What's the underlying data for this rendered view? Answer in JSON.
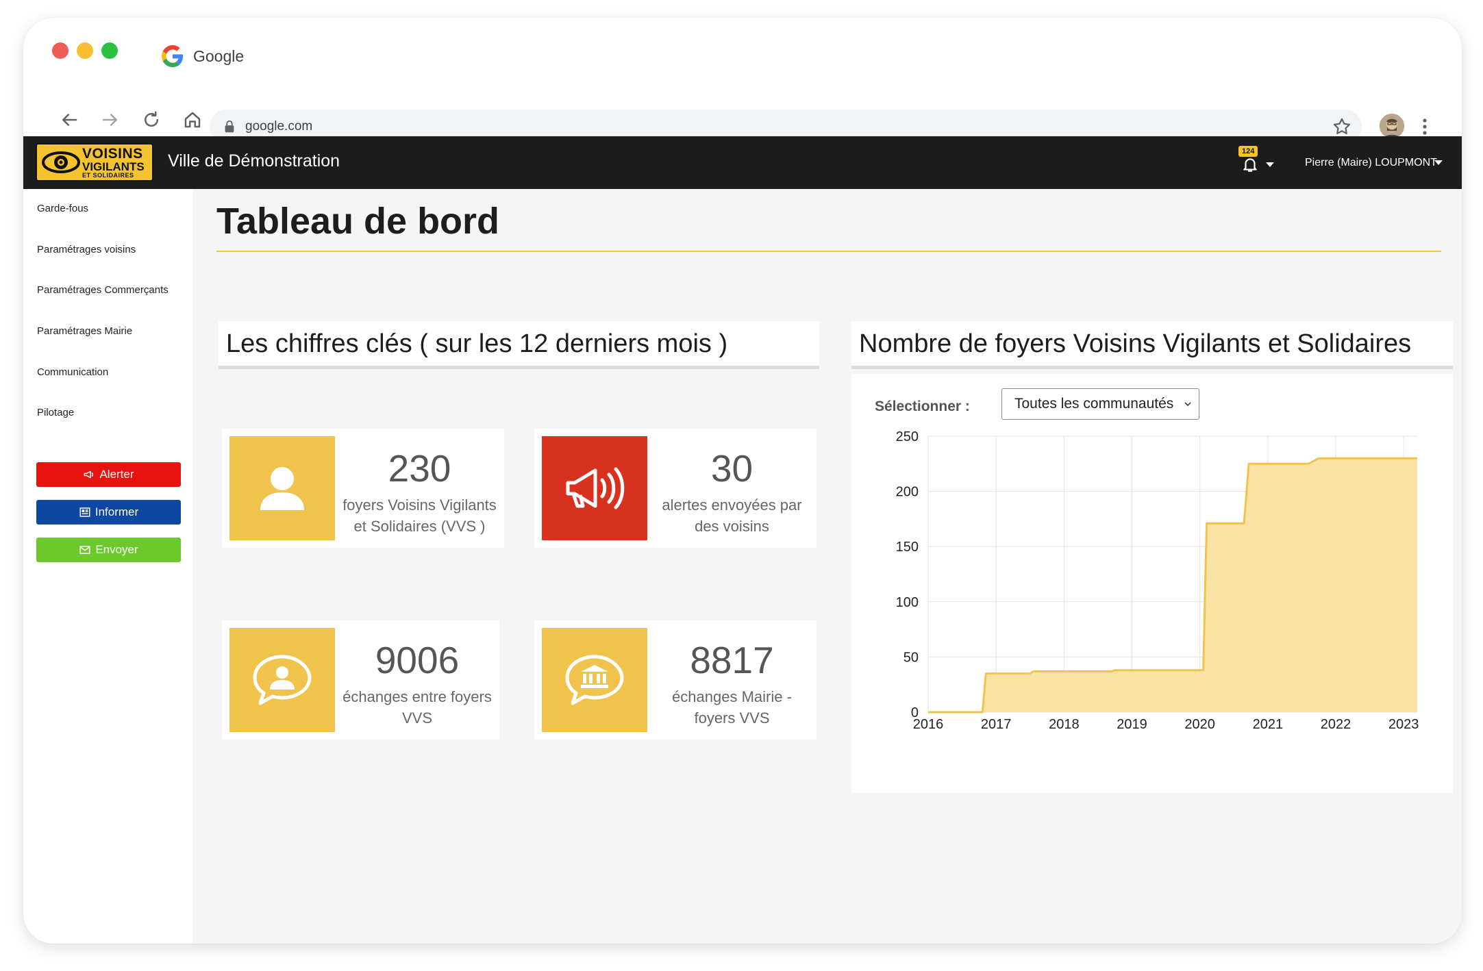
{
  "browser": {
    "tab_title": "Google",
    "url": "google.com"
  },
  "app": {
    "logo": {
      "line1": "VOISINS",
      "line2": "VIGILANTS",
      "line3": "ET SOLIDAIRES"
    },
    "city": "Ville de Démonstration",
    "notifications_count": "124",
    "user": "Pierre (Maire) LOUPMONT"
  },
  "sidebar": {
    "items": [
      {
        "label": "Garde-fous"
      },
      {
        "label": "Paramétrages voisins"
      },
      {
        "label": "Paramétrages Commerçants"
      },
      {
        "label": "Paramétrages Mairie"
      },
      {
        "label": "Communication"
      },
      {
        "label": "Pilotage"
      }
    ],
    "buttons": {
      "alert": "Alerter",
      "inform": "Informer",
      "send": "Envoyer"
    }
  },
  "main": {
    "title": "Tableau de bord",
    "key_figures": {
      "heading": "Les chiffres clés ( sur les 12 derniers mois )",
      "cards": [
        {
          "value": "230",
          "label": "foyers Voisins Vigilants et Solidaires (VVS )",
          "icon": "user-icon",
          "color": "#f0c44c"
        },
        {
          "value": "30",
          "label": "alertes envoyées par des voisins",
          "icon": "megaphone-icon",
          "color": "#d8321f"
        },
        {
          "value": "9006",
          "label": "échanges entre foyers VVS",
          "icon": "user-chat-icon",
          "color": "#f0c44c"
        },
        {
          "value": "8817",
          "label": "échanges Mairie - foyers VVS",
          "icon": "townhall-chat-icon",
          "color": "#f0c44c"
        }
      ]
    },
    "households_chart": {
      "heading": "Nombre de foyers Voisins Vigilants et Solidaires",
      "select_label": "Sélectionner :",
      "select_value": "Toutes les communautés"
    }
  },
  "chart_data": {
    "type": "area",
    "title": "",
    "xlabel": "",
    "ylabel": "",
    "x_ticks": [
      "2016",
      "2017",
      "2018",
      "2019",
      "2020",
      "2021",
      "2022",
      "2023"
    ],
    "y_ticks": [
      0,
      50,
      100,
      150,
      200,
      250
    ],
    "xlim": [
      2016,
      2023.2
    ],
    "ylim": [
      0,
      250
    ],
    "grid": true,
    "step": true,
    "series": [
      {
        "color": "#f0c44c",
        "fill": "#f8e2a4",
        "points": [
          [
            2016.0,
            0
          ],
          [
            2016.8,
            0
          ],
          [
            2016.85,
            35
          ],
          [
            2017.5,
            35
          ],
          [
            2017.55,
            37
          ],
          [
            2018.7,
            37
          ],
          [
            2018.75,
            38
          ],
          [
            2020.05,
            38
          ],
          [
            2020.1,
            171
          ],
          [
            2020.65,
            171
          ],
          [
            2020.72,
            225
          ],
          [
            2021.6,
            225
          ],
          [
            2021.75,
            230
          ],
          [
            2023.2,
            230
          ]
        ]
      }
    ]
  }
}
